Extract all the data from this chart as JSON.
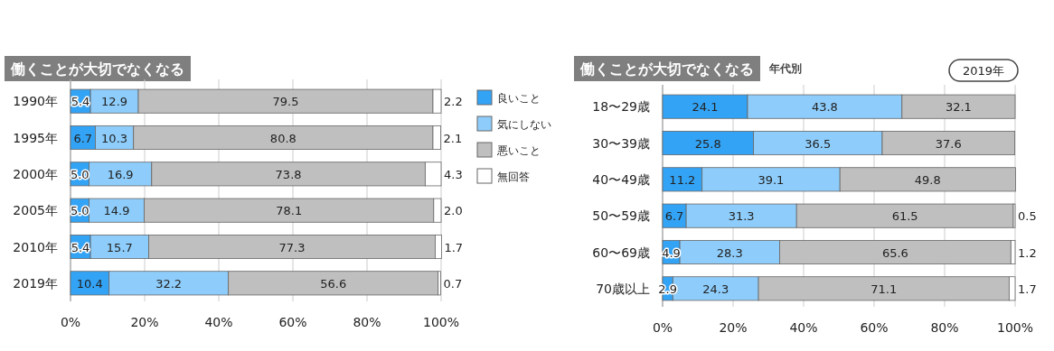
{
  "chart_data": [
    {
      "type": "bar",
      "orientation": "horizontal",
      "stacked": true,
      "title": "働くことが大切でなくなる",
      "categories": [
        "1990年",
        "1995年",
        "2000年",
        "2005年",
        "2010年",
        "2019年"
      ],
      "series": [
        {
          "name": "良いこと",
          "color": "#33a3f5",
          "values": [
            5.4,
            6.7,
            5.0,
            5.0,
            5.4,
            10.4
          ],
          "value_labels": [
            "5.4",
            "6.7",
            "5.0",
            "5.0",
            "5.4",
            "10.4"
          ]
        },
        {
          "name": "気にしない",
          "color": "#8ecdfb",
          "values": [
            12.9,
            10.3,
            16.9,
            14.9,
            15.7,
            32.2
          ],
          "value_labels": [
            "12.9",
            "10.3",
            "16.9",
            "14.9",
            "15.7",
            "32.2"
          ]
        },
        {
          "name": "悪いこと",
          "color": "#bfbfbf",
          "values": [
            79.5,
            80.8,
            73.8,
            78.1,
            77.3,
            56.6
          ],
          "value_labels": [
            "79.5",
            "80.8",
            "73.8",
            "78.1",
            "77.3",
            "56.6"
          ]
        },
        {
          "name": "無回答",
          "color": "#ffffff",
          "values": [
            2.2,
            2.1,
            4.3,
            2.0,
            1.7,
            0.7
          ],
          "value_labels": [
            "2.2",
            "2.1",
            "4.3",
            "2.0",
            "1.7",
            "0.7"
          ]
        }
      ],
      "xlim": [
        0,
        100
      ],
      "xticks": [
        {
          "value": 0,
          "label": "0%"
        },
        {
          "value": 20,
          "label": "20%"
        },
        {
          "value": 40,
          "label": "40%"
        },
        {
          "value": 60,
          "label": "60%"
        },
        {
          "value": 80,
          "label": "80%"
        },
        {
          "value": 100,
          "label": "100%"
        }
      ],
      "grid": "x",
      "legend": "right"
    },
    {
      "type": "bar",
      "orientation": "horizontal",
      "stacked": true,
      "title": "働くことが大切でなくなる",
      "subtitle": "年代別",
      "annotations": [
        "2019年"
      ],
      "categories": [
        "18〜29歳",
        "30〜39歳",
        "40〜49歳",
        "50〜59歳",
        "60〜69歳",
        "70歳以上"
      ],
      "series": [
        {
          "color": "#33a3f5",
          "values": [
            24.1,
            25.8,
            11.2,
            6.7,
            4.9,
            2.9
          ],
          "value_labels": [
            "24.1",
            "25.8",
            "11.2",
            "6.7",
            "4.9",
            "2.9"
          ]
        },
        {
          "color": "#8ecdfb",
          "values": [
            43.8,
            36.5,
            39.1,
            31.3,
            28.3,
            24.3
          ],
          "value_labels": [
            "43.8",
            "36.5",
            "39.1",
            "31.3",
            "28.3",
            "24.3"
          ]
        },
        {
          "color": "#bfbfbf",
          "values": [
            32.1,
            37.6,
            49.8,
            61.5,
            65.6,
            71.1
          ],
          "value_labels": [
            "32.1",
            "37.6",
            "49.8",
            "61.5",
            "65.6",
            "71.1"
          ]
        },
        {
          "color": "#ffffff",
          "values": [
            null,
            null,
            null,
            0.5,
            1.2,
            1.7
          ],
          "value_labels": [
            null,
            null,
            null,
            "0.5",
            "1.2",
            "1.7"
          ]
        }
      ],
      "xlim": [
        0,
        100
      ],
      "xticks": [
        {
          "value": 0,
          "label": "0%"
        },
        {
          "value": 20,
          "label": "20%"
        },
        {
          "value": 40,
          "label": "40%"
        },
        {
          "value": 60,
          "label": "60%"
        },
        {
          "value": 80,
          "label": "80%"
        },
        {
          "value": 100,
          "label": "100%"
        }
      ],
      "grid": "x"
    }
  ]
}
